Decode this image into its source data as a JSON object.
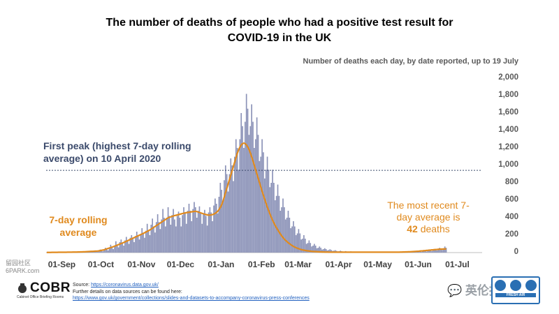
{
  "title_line1": "The number of deaths of people who had a positive test result for",
  "title_line2": "COVID-19 in the UK",
  "subtitle": "Number of deaths each day, by date reported, up to 19 July",
  "annotations": {
    "peak": "First peak (highest 7-day rolling average) on 10 April 2020",
    "rolling": "7-day rolling average",
    "recent_prefix": "The most recent 7-day average is",
    "recent_value": "42",
    "recent_suffix": "deaths"
  },
  "footer": {
    "source_label": "Source:",
    "source_url": "https://coronavirus.data.gov.uk/",
    "further": "Further details on data sources can be found here:",
    "further_url": "https://www.gov.uk/government/collections/slides-and-datasets-to-accompany-coronavirus-press-conferences"
  },
  "watermark_left": [
    "留园社区",
    "6PARK.com"
  ],
  "logo": {
    "name": "COBR",
    "sub": "Cabinet Office Briefing Rooms"
  },
  "watermark_right": "英伦投资客",
  "badge_label": "FRESH AIR",
  "colors": {
    "bars": "#8c93b8",
    "line": "#e08a1e",
    "reference": "#3b4a6b",
    "ticks": "#595959"
  },
  "chart_data": {
    "type": "bar",
    "title": "The number of deaths of people who had a positive test result for COVID-19 in the UK",
    "subtitle": "Number of deaths each day, by date reported, up to 19 July",
    "x_start": "2020-08-20",
    "x_end": "2021-07-19",
    "ylim": [
      0,
      2000
    ],
    "y_ticks": [
      0,
      200,
      400,
      600,
      800,
      1000,
      1200,
      1400,
      1600,
      1800,
      2000
    ],
    "y_tick_labels": [
      "0",
      "200",
      "400",
      "600",
      "800",
      "1,000",
      "1,200",
      "1,400",
      "1,600",
      "1,800",
      "2,000"
    ],
    "x_ticks": [
      {
        "date": "2020-09-01",
        "label": "01-Sep"
      },
      {
        "date": "2020-10-01",
        "label": "01-Oct"
      },
      {
        "date": "2020-11-01",
        "label": "01-Nov"
      },
      {
        "date": "2020-12-01",
        "label": "01-Dec"
      },
      {
        "date": "2021-01-01",
        "label": "01-Jan"
      },
      {
        "date": "2021-02-01",
        "label": "01-Feb"
      },
      {
        "date": "2021-03-01",
        "label": "01-Mar"
      },
      {
        "date": "2021-04-01",
        "label": "01-Apr"
      },
      {
        "date": "2021-05-01",
        "label": "01-May"
      },
      {
        "date": "2021-06-01",
        "label": "01-Jun"
      },
      {
        "date": "2021-07-01",
        "label": "01-Jul"
      }
    ],
    "reference_line": {
      "value": 943,
      "label": "First peak (highest 7-day rolling average) on 10 April 2020"
    },
    "series": [
      {
        "type": "bar",
        "values": [
          2,
          3,
          1,
          2,
          3,
          4,
          2,
          1,
          3,
          5,
          2,
          3,
          4,
          6,
          3,
          2,
          5,
          8,
          3,
          4,
          6,
          9,
          5,
          3,
          8,
          12,
          6,
          5,
          9,
          15,
          8,
          6,
          10,
          20,
          12,
          8,
          14,
          25,
          15,
          10,
          19,
          35,
          22,
          15,
          30,
          55,
          40,
          25,
          55,
          90,
          60,
          40,
          80,
          130,
          90,
          60,
          120,
          150,
          110,
          80,
          140,
          180,
          140,
          100,
          170,
          200,
          170,
          120,
          190,
          240,
          190,
          150,
          210,
          280,
          220,
          170,
          250,
          330,
          260,
          200,
          320,
          390,
          300,
          230,
          350,
          440,
          350,
          270,
          380,
          500,
          400,
          300,
          400,
          520,
          420,
          320,
          430,
          500,
          380,
          300,
          420,
          470,
          400,
          300,
          430,
          520,
          450,
          330,
          480,
          560,
          480,
          360,
          500,
          580,
          520,
          400,
          480,
          530,
          450,
          330,
          440,
          490,
          420,
          310,
          460,
          520,
          460,
          360,
          540,
          620,
          560,
          450,
          640,
          800,
          720,
          580,
          830,
          1000,
          900,
          700,
          900,
          1080,
          1000,
          820,
          1100,
          1300,
          1200,
          950,
          1300,
          1600,
          1450,
          1200,
          1500,
          1820,
          1650,
          1350,
          1450,
          1700,
          1500,
          1200,
          1300,
          1550,
          1350,
          1050,
          1100,
          1300,
          1150,
          850,
          950,
          1100,
          950,
          750,
          800,
          950,
          800,
          600,
          650,
          780,
          650,
          480,
          520,
          620,
          520,
          380,
          400,
          480,
          400,
          280,
          300,
          360,
          300,
          200,
          220,
          270,
          220,
          150,
          160,
          200,
          160,
          100,
          110,
          140,
          110,
          70,
          80,
          100,
          80,
          50,
          55,
          70,
          55,
          35,
          40,
          50,
          40,
          25,
          30,
          38,
          30,
          20,
          22,
          28,
          20,
          14,
          16,
          22,
          16,
          10,
          12,
          17,
          12,
          8,
          10,
          14,
          10,
          6,
          8,
          12,
          8,
          5,
          7,
          10,
          7,
          4,
          5,
          8,
          6,
          3,
          5,
          7,
          5,
          3,
          4,
          7,
          5,
          3,
          4,
          6,
          4,
          2,
          4,
          6,
          4,
          2,
          3,
          5,
          4,
          2,
          3,
          6,
          4,
          2,
          4,
          7,
          5,
          3,
          5,
          9,
          6,
          4,
          7,
          12,
          8,
          6,
          10,
          16,
          12,
          8,
          14,
          22,
          16,
          12,
          20,
          30,
          24,
          18,
          28,
          40,
          32,
          25,
          38,
          55,
          44,
          30,
          50,
          70,
          55
        ]
      },
      {
        "type": "line",
        "name": "7-day rolling average",
        "values": [
          2,
          2,
          2,
          2,
          3,
          3,
          3,
          3,
          3,
          4,
          4,
          4,
          4,
          4,
          4,
          4,
          5,
          5,
          5,
          5,
          6,
          6,
          6,
          6,
          7,
          7,
          8,
          8,
          9,
          9,
          10,
          11,
          12,
          13,
          14,
          14,
          15,
          16,
          17,
          18,
          20,
          23,
          26,
          29,
          33,
          38,
          43,
          48,
          53,
          58,
          63,
          68,
          74,
          80,
          86,
          92,
          98,
          104,
          110,
          116,
          123,
          130,
          137,
          144,
          151,
          158,
          165,
          172,
          179,
          186,
          193,
          200,
          207,
          214,
          221,
          228,
          236,
          244,
          252,
          260,
          270,
          280,
          290,
          300,
          310,
          320,
          330,
          340,
          350,
          360,
          370,
          380,
          390,
          400,
          405,
          410,
          415,
          420,
          425,
          428,
          432,
          436,
          440,
          444,
          448,
          452,
          455,
          458,
          460,
          462,
          465,
          468,
          470,
          472,
          474,
          470,
          465,
          460,
          455,
          450,
          445,
          440,
          436,
          432,
          430,
          430,
          432,
          436,
          442,
          450,
          460,
          475,
          495,
          520,
          550,
          590,
          640,
          690,
          740,
          790,
          840,
          890,
          940,
          990,
          1040,
          1090,
          1140,
          1180,
          1210,
          1235,
          1250,
          1255,
          1250,
          1235,
          1210,
          1180,
          1140,
          1095,
          1050,
          1000,
          950,
          900,
          850,
          800,
          750,
          700,
          655,
          610,
          565,
          520,
          480,
          440,
          405,
          370,
          340,
          310,
          285,
          260,
          235,
          212,
          190,
          172,
          155,
          140,
          126,
          113,
          101,
          90,
          80,
          71,
          63,
          56,
          50,
          44,
          39,
          35,
          31,
          28,
          25,
          22,
          20,
          18,
          16,
          14,
          13,
          12,
          11,
          10,
          9,
          8,
          8,
          7,
          7,
          6,
          6,
          6,
          5,
          5,
          5,
          5,
          5,
          5,
          5,
          5,
          5,
          5,
          5,
          5,
          5,
          5,
          5,
          5,
          5,
          5,
          5,
          5,
          5,
          5,
          5,
          5,
          5,
          5,
          5,
          5,
          5,
          5,
          5,
          5,
          5,
          5,
          5,
          5,
          5,
          5,
          5,
          5,
          5,
          5,
          5,
          5,
          5,
          5,
          5,
          5,
          5,
          5,
          5,
          5,
          5,
          5,
          5,
          6,
          6,
          7,
          7,
          8,
          8,
          9,
          9,
          10,
          11,
          12,
          13,
          14,
          15,
          16,
          18,
          19,
          20,
          22,
          23,
          25,
          26,
          28,
          29,
          31,
          32,
          34,
          35,
          36,
          38,
          39,
          40,
          40,
          41,
          41,
          42
        ]
      }
    ]
  }
}
